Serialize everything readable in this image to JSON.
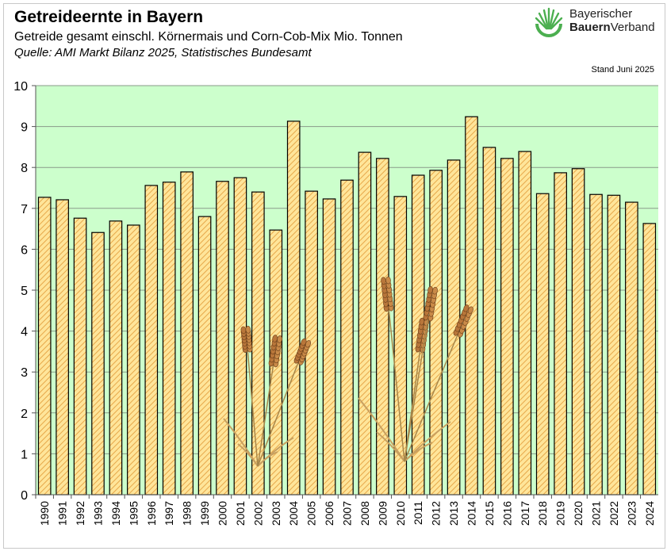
{
  "header": {
    "title": "Getreideernte in Bayern",
    "subtitle": "Getreide gesamt einschl. Körnermais und Corn-Cob-Mix Mio. Tonnen",
    "source": "Quelle: AMI Markt Bilanz 2025, Statistisches Bundesamt",
    "stand": "Stand Juni 2025"
  },
  "logo": {
    "line1": "Bayerischer",
    "line2_bold": "Bauern",
    "line2_rest": "Verband"
  },
  "colors": {
    "plot_bg": "#ccffcc",
    "bar_fill": "#ffe59a",
    "bar_hatch": "#e6a84a",
    "bar_stroke": "#000000",
    "grid": "#8a9a8a",
    "logo_green": "#4caf50"
  },
  "chart_data": {
    "type": "bar",
    "title": "Getreideernte in Bayern",
    "xlabel": "",
    "ylabel": "Mio. Tonnen",
    "ylim": [
      0,
      10
    ],
    "yticks": [
      0,
      1,
      2,
      3,
      4,
      5,
      6,
      7,
      8,
      9,
      10
    ],
    "grid": true,
    "categories": [
      "1990",
      "1991",
      "1992",
      "1993",
      "1994",
      "1995",
      "1996",
      "1997",
      "1998",
      "1999",
      "2000",
      "2001",
      "2002",
      "2003",
      "2004",
      "2005",
      "2006",
      "2007",
      "2008",
      "2009",
      "2010",
      "2011",
      "2012",
      "2013",
      "2014",
      "2015",
      "2016",
      "2017",
      "2018",
      "2019",
      "2020",
      "2021",
      "2022",
      "2023",
      "2024"
    ],
    "values": [
      7.27,
      7.21,
      6.76,
      6.41,
      6.69,
      6.59,
      7.56,
      7.64,
      7.89,
      6.8,
      7.66,
      7.75,
      7.4,
      6.47,
      9.13,
      7.42,
      7.23,
      7.69,
      8.37,
      8.22,
      7.29,
      7.81,
      7.93,
      8.18,
      9.24,
      8.49,
      8.22,
      8.39,
      7.36,
      7.87,
      7.97,
      7.34,
      7.32,
      7.15,
      6.63
    ]
  }
}
